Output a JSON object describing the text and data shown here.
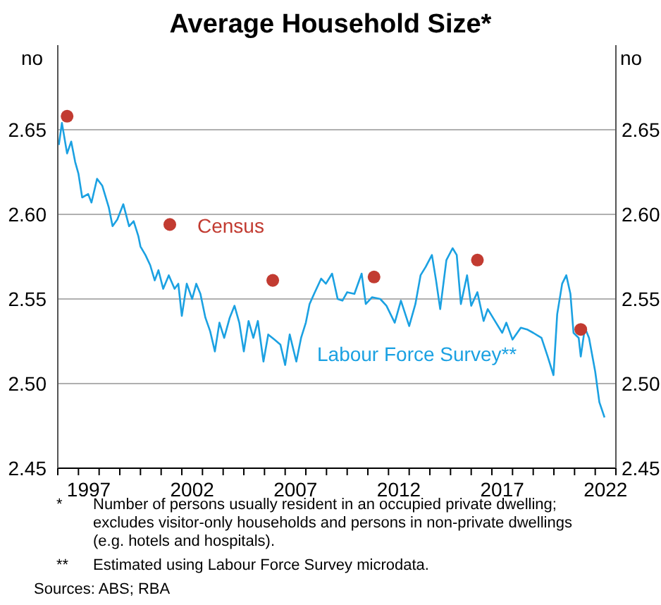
{
  "chart_data": {
    "type": "line",
    "title": "Average Household Size*",
    "ylabel": "no",
    "y2label": "no",
    "xlim": [
      1996,
      2023
    ],
    "ylim": [
      2.45,
      2.7
    ],
    "yticks": [
      2.45,
      {
        "value": 2.5,
        "label": "2.50"
      },
      2.55,
      {
        "value": 2.6,
        "label": "2.60"
      },
      2.65
    ],
    "y2lim": [
      2.45,
      2.7
    ],
    "y2ticks": [
      2.45,
      {
        "value": 2.5,
        "label": "2.50"
      },
      2.55,
      {
        "value": 2.6,
        "label": "2.60"
      },
      2.65
    ],
    "xticks": [
      {
        "value": 1996,
        "label": null
      },
      {
        "value": 1997,
        "label": null
      },
      {
        "value": 1998,
        "label": null
      },
      {
        "value": 1999,
        "label": null
      },
      {
        "value": 2000,
        "label": null
      },
      {
        "value": 2001,
        "label": null
      },
      {
        "value": 2002,
        "label": null
      },
      {
        "value": 2003,
        "label": null
      },
      {
        "value": 2004,
        "label": null
      },
      {
        "value": 2005,
        "label": null
      },
      {
        "value": 2006,
        "label": null
      },
      {
        "value": 2007,
        "label": null
      },
      {
        "value": 2008,
        "label": null
      },
      {
        "value": 2009,
        "label": null
      },
      {
        "value": 2010,
        "label": null
      },
      {
        "value": 2011,
        "label": null
      },
      {
        "value": 2012,
        "label": null
      },
      {
        "value": 2013,
        "label": null
      },
      {
        "value": 2014,
        "label": null
      },
      {
        "value": 2015,
        "label": null
      },
      {
        "value": 2016,
        "label": null
      },
      {
        "value": 2017,
        "label": null
      },
      {
        "value": 2018,
        "label": null
      },
      {
        "value": 2019,
        "label": null
      },
      {
        "value": 2020,
        "label": null
      },
      {
        "value": 2021,
        "label": null
      },
      {
        "value": 2022,
        "label": null
      },
      {
        "value": 2023,
        "label": null
      },
      {
        "value": 1997.5,
        "label": "1997"
      },
      {
        "value": 2002.5,
        "label": "2002"
      },
      {
        "value": 2007.5,
        "label": "2007"
      },
      {
        "value": 2012.5,
        "label": "2012"
      },
      {
        "value": 2017.5,
        "label": "2017"
      },
      {
        "value": 2022.5,
        "label": "2022"
      }
    ],
    "grid": "y",
    "legend": false,
    "series": [
      {
        "name": "Labour Force Survey**",
        "type": "line",
        "color": "#1ba1e2",
        "marker": "none",
        "x": [
          1996.05,
          1996.2,
          1996.45,
          1996.65,
          1996.84,
          1997.0,
          1997.18,
          1997.47,
          1997.63,
          1997.9,
          1998.15,
          1998.47,
          1998.65,
          1998.88,
          1999.17,
          1999.45,
          1999.67,
          1999.9,
          2000.0,
          2000.24,
          2000.47,
          2000.69,
          2000.87,
          2001.1,
          2001.37,
          2001.65,
          2001.83,
          2002.0,
          2002.24,
          2002.5,
          2002.7,
          2002.9,
          2003.14,
          2003.37,
          2003.6,
          2003.82,
          2004.05,
          2004.32,
          2004.55,
          2004.78,
          2005.0,
          2005.23,
          2005.46,
          2005.68,
          2005.95,
          2006.18,
          2006.48,
          2006.77,
          2007.0,
          2007.22,
          2007.54,
          2007.77,
          2008.0,
          2008.18,
          2008.4,
          2008.74,
          2008.97,
          2009.27,
          2009.54,
          2009.77,
          2010.0,
          2010.35,
          2010.7,
          2010.9,
          2011.2,
          2011.6,
          2011.9,
          2012.3,
          2012.6,
          2013.0,
          2013.3,
          2013.55,
          2013.8,
          2014.1,
          2014.3,
          2014.5,
          2014.8,
          2015.1,
          2015.3,
          2015.5,
          2015.8,
          2016.0,
          2016.3,
          2016.6,
          2016.8,
          2017.2,
          2017.5,
          2017.7,
          2018.0,
          2018.4,
          2018.7,
          2019.0,
          2019.4,
          2019.7,
          2019.98,
          2020.16,
          2020.4,
          2020.6,
          2020.8,
          2020.95,
          2021.2,
          2021.3,
          2021.5,
          2021.7,
          2022.0,
          2022.2,
          2022.45
        ],
        "values": [
          2.641,
          2.654,
          2.636,
          2.643,
          2.631,
          2.624,
          2.61,
          2.612,
          2.607,
          2.621,
          2.617,
          2.604,
          2.593,
          2.597,
          2.606,
          2.593,
          2.596,
          2.587,
          2.581,
          2.576,
          2.57,
          2.561,
          2.567,
          2.556,
          2.564,
          2.556,
          2.559,
          2.54,
          2.559,
          2.55,
          2.559,
          2.553,
          2.539,
          2.531,
          2.519,
          2.536,
          2.527,
          2.539,
          2.546,
          2.536,
          2.519,
          2.537,
          2.527,
          2.537,
          2.513,
          2.529,
          2.526,
          2.523,
          2.511,
          2.529,
          2.513,
          2.527,
          2.536,
          2.547,
          2.553,
          2.562,
          2.559,
          2.565,
          2.55,
          2.549,
          2.554,
          2.553,
          2.565,
          2.547,
          2.551,
          2.55,
          2.546,
          2.536,
          2.549,
          2.534,
          2.547,
          2.564,
          2.569,
          2.576,
          2.561,
          2.544,
          2.573,
          2.58,
          2.576,
          2.547,
          2.564,
          2.546,
          2.554,
          2.537,
          2.544,
          2.536,
          2.53,
          2.536,
          2.526,
          2.533,
          2.532,
          2.53,
          2.527,
          2.516,
          2.505,
          2.541,
          2.559,
          2.564,
          2.553,
          2.53,
          2.527,
          2.516,
          2.533,
          2.527,
          2.507,
          2.489,
          2.48
        ]
      },
      {
        "name": "Census",
        "type": "scatter",
        "color": "#c23b31",
        "marker": "circle",
        "x": [
          1996.45,
          2001.42,
          2006.4,
          2011.3,
          2016.3,
          2021.3
        ],
        "values": [
          2.658,
          2.594,
          2.561,
          2.563,
          2.573,
          2.532
        ]
      }
    ],
    "annotations": [
      "*",
      "Number of persons usually resident in an occupied private dwelling; excludes visitor-only households and persons in non-private dwellings (e.g. hotels and hospitals).",
      "**",
      "Estimated using Labour Force Survey microdata.",
      "Sources: ABS; RBA"
    ]
  }
}
